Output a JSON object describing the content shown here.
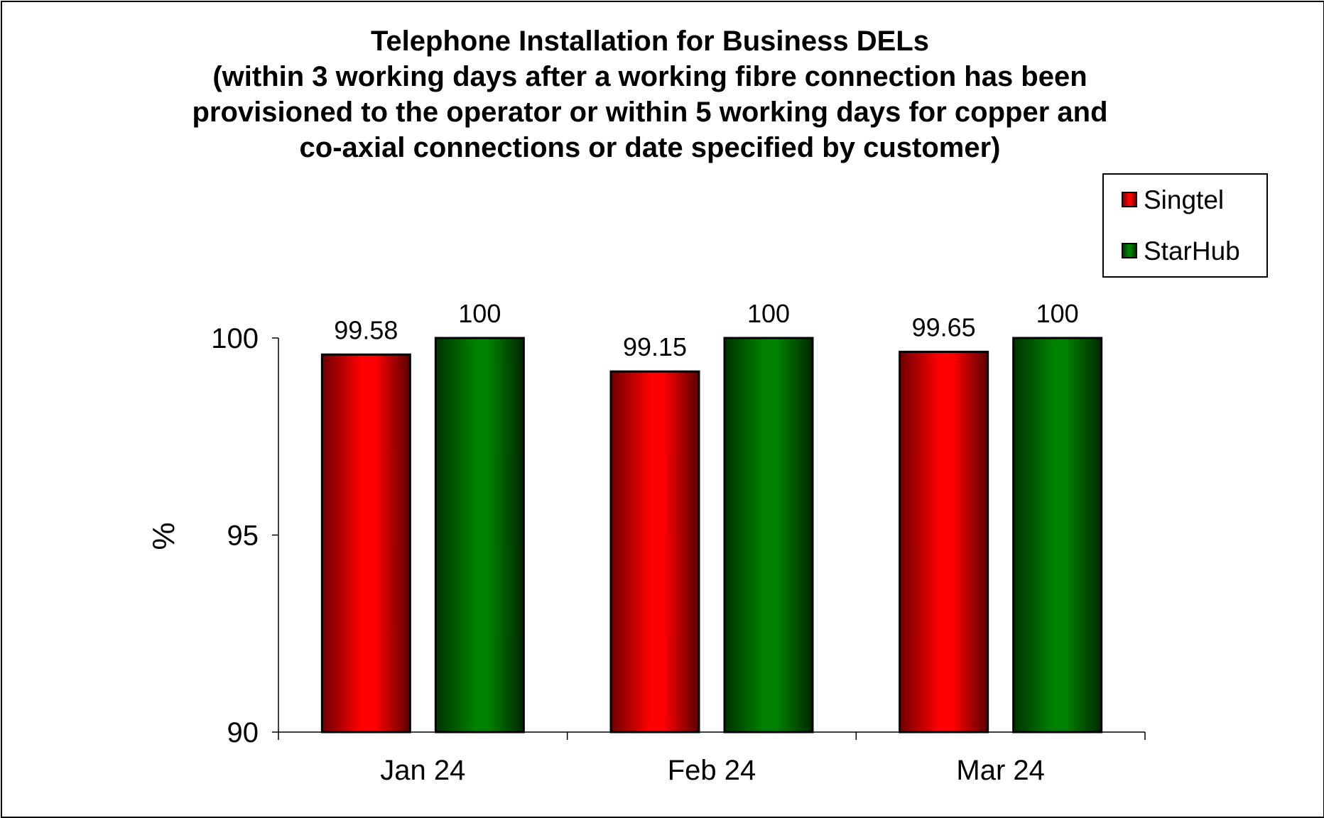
{
  "chart_data": {
    "type": "bar",
    "title_lines": [
      "Telephone Installation for Business DELs",
      "(within 3 working days after a working fibre connection has been",
      "provisioned to the operator or within 5 working days for copper and",
      "co-axial connections or date specified by customer)"
    ],
    "categories": [
      "Jan 24",
      "Feb 24",
      "Mar 24"
    ],
    "series": [
      {
        "name": "Singtel",
        "values": [
          99.58,
          99.15,
          99.65
        ],
        "labels": [
          "99.58",
          "99.15",
          "99.65"
        ],
        "color": "#ff0000",
        "dark": "#7a0000"
      },
      {
        "name": "StarHub",
        "values": [
          100,
          100,
          100
        ],
        "labels": [
          "100",
          "100",
          "100"
        ],
        "color": "#008000",
        "dark": "#003300"
      }
    ],
    "ylabel": "%",
    "xlabel": "",
    "ylim": [
      90,
      100
    ],
    "yticks": [
      "90",
      "95",
      "100"
    ],
    "ytick_values": [
      90,
      95,
      100
    ],
    "grid": false,
    "legend_position": "top-right"
  }
}
